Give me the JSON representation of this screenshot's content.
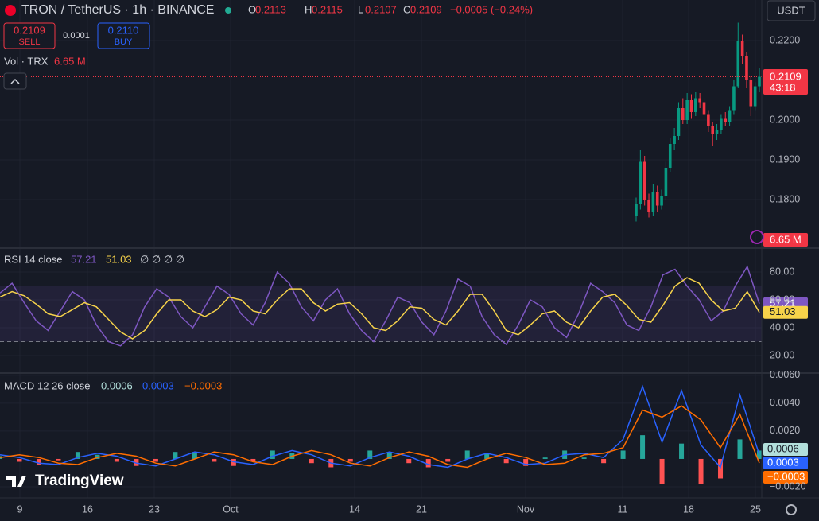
{
  "header": {
    "symbol": "TRON / TetherUS · 1h · BINANCE",
    "ohlc": [
      {
        "key": "O",
        "value": "0.2113"
      },
      {
        "key": "H",
        "value": "0.2115"
      },
      {
        "key": "L",
        "value": "0.2107"
      },
      {
        "key": "C",
        "value": "0.2109"
      }
    ],
    "change": "−0.0005 (−0.24%)",
    "currency": "USDT"
  },
  "trade": {
    "sell_price": "0.2109",
    "sell_label": "SELL",
    "spread": "0.0001",
    "buy_price": "0.2110",
    "buy_label": "BUY"
  },
  "volume": {
    "label": "Vol · TRX",
    "value": "6.65 M"
  },
  "price_tag": {
    "value": "0.2109",
    "countdown": "43:18"
  },
  "logo": "TradingView",
  "x_labels": [
    "9",
    "16",
    "23",
    "Oct",
    "14",
    "21",
    "Nov",
    "11",
    "18",
    "25"
  ],
  "chart_data": [
    {
      "type": "candlestick",
      "up_color": "#089981",
      "down_color": "#f23645",
      "open": [
        0.176,
        0.179,
        0.1895,
        0.18,
        0.177,
        0.182,
        0.1785,
        0.181,
        0.188,
        0.194,
        0.196,
        0.203,
        0.2,
        0.205,
        0.202,
        0.2055,
        0.2045,
        0.2015,
        0.1985,
        0.1965,
        0.1975,
        0.2005,
        0.1995,
        0.2025,
        0.2085,
        0.22,
        0.216,
        0.21,
        0.2035,
        0.2085
      ],
      "high": [
        0.1805,
        0.1925,
        0.191,
        0.1815,
        0.184,
        0.1835,
        0.1825,
        0.1895,
        0.1955,
        0.198,
        0.2045,
        0.2055,
        0.2068,
        0.2065,
        0.207,
        0.2068,
        0.2055,
        0.2025,
        0.1995,
        0.199,
        0.2015,
        0.202,
        0.2035,
        0.21,
        0.2245,
        0.2215,
        0.217,
        0.211,
        0.2095,
        0.213
      ],
      "low": [
        0.1745,
        0.1775,
        0.1785,
        0.1755,
        0.176,
        0.177,
        0.1775,
        0.18,
        0.187,
        0.1925,
        0.195,
        0.199,
        0.199,
        0.2005,
        0.201,
        0.203,
        0.2,
        0.197,
        0.1935,
        0.195,
        0.1965,
        0.1985,
        0.1985,
        0.2015,
        0.208,
        0.214,
        0.208,
        0.201,
        0.2025,
        0.207
      ],
      "close": [
        0.179,
        0.1895,
        0.18,
        0.177,
        0.182,
        0.1785,
        0.181,
        0.188,
        0.194,
        0.196,
        0.203,
        0.2,
        0.205,
        0.202,
        0.2055,
        0.2045,
        0.2015,
        0.1985,
        0.1965,
        0.1975,
        0.2005,
        0.1995,
        0.2025,
        0.2085,
        0.22,
        0.216,
        0.21,
        0.2035,
        0.2085,
        0.2109
      ],
      "ylim": [
        0.1682,
        0.2302
      ],
      "yticks": [
        {
          "value": 0.18,
          "label": "0.1800"
        },
        {
          "value": 0.19,
          "label": "0.1900"
        },
        {
          "value": 0.2,
          "label": "0.2000"
        },
        {
          "value": 0.22,
          "label": "0.2200"
        }
      ]
    },
    {
      "type": "rsi",
      "title": "RSI",
      "subtitle": "14 close",
      "extra": "∅ ∅ ∅ ∅",
      "band": [
        30,
        70
      ],
      "series": [
        {
          "color": "#7e57c2",
          "values": [
            65,
            72,
            58,
            45,
            38,
            52,
            66,
            60,
            42,
            30,
            27,
            35,
            55,
            68,
            62,
            48,
            40,
            55,
            70,
            64,
            50,
            42,
            58,
            80,
            72,
            55,
            45,
            60,
            68,
            50,
            38,
            30,
            45,
            62,
            58,
            44,
            35,
            52,
            75,
            70,
            48,
            35,
            28,
            42,
            60,
            55,
            40,
            33,
            50,
            72,
            66,
            58,
            42,
            38,
            55,
            78,
            82,
            70,
            60,
            45,
            52,
            70,
            84,
            57.21
          ]
        },
        {
          "color": "#f7d34a",
          "values": [
            62,
            66,
            63,
            57,
            50,
            48,
            53,
            58,
            55,
            46,
            37,
            32,
            38,
            50,
            60,
            60,
            52,
            48,
            53,
            62,
            60,
            52,
            50,
            60,
            68,
            68,
            58,
            52,
            57,
            58,
            50,
            40,
            38,
            45,
            55,
            54,
            46,
            42,
            52,
            64,
            64,
            52,
            38,
            35,
            42,
            50,
            52,
            44,
            40,
            52,
            62,
            64,
            56,
            46,
            44,
            56,
            70,
            76,
            72,
            60,
            52,
            54,
            66,
            51.03
          ]
        }
      ],
      "ylim": [
        8,
        94.9
      ],
      "yticks": [
        {
          "value": 20,
          "label": "20.00"
        },
        {
          "value": 40,
          "label": "40.00"
        },
        {
          "value": 60,
          "label": "60.00"
        },
        {
          "value": 80,
          "label": "80.00"
        }
      ]
    },
    {
      "type": "macd",
      "title": "MACD",
      "subtitle": "12 26 close",
      "series": [
        {
          "color": "#26a69a",
          "neg_color": "#ff5252",
          "legend_color": "#b2dfdb",
          "values": [
            0.0002,
            -0.0002,
            -0.0004,
            -0.0001,
            0.0005,
            0.0003,
            -0.0002,
            -0.0005,
            -0.0002,
            0.0005,
            0.0005,
            -0.0002,
            -0.0005,
            -0.0002,
            0.0006,
            0.0004,
            -0.0003,
            -0.0006,
            -0.0002,
            0.0006,
            0.0004,
            -0.0003,
            -0.0006,
            -0.0002,
            0.0006,
            0.0004,
            -0.0003,
            -0.0005,
            0.0001,
            0.0006,
            0.0001,
            -0.0003,
            0.0006,
            0.0017,
            -0.0018,
            0.0011,
            -0.0018,
            -0.0014,
            0.0014,
            0.0006
          ]
        },
        {
          "color": "#2962ff",
          "values": [
            0.0003,
            0.0001,
            -0.0003,
            -0.0004,
            0.0001,
            0.0004,
            0.0002,
            -0.0003,
            -0.0005,
            0,
            0.0005,
            0.0003,
            -0.0002,
            -0.0004,
            0.0002,
            0.0006,
            0.0003,
            -0.0003,
            -0.0005,
            0.0001,
            0.0005,
            0.0002,
            -0.0004,
            -0.0006,
            0,
            0.0004,
            0.0001,
            -0.0004,
            -0.0003,
            0.0003,
            0.0004,
            0.0001,
            0.0014,
            0.0052,
            0.0012,
            0.0049,
            0.001,
            -0.0006,
            0.0046,
            0.0003
          ]
        },
        {
          "color": "#ff6d00",
          "legend_value": "−0.0003",
          "values": [
            0.0001,
            0.0003,
            0.0001,
            -0.0003,
            -0.0004,
            0.0001,
            0.0004,
            0.0002,
            -0.0003,
            -0.0005,
            0,
            0.0005,
            0.0003,
            -0.0002,
            -0.0004,
            0.0002,
            0.0006,
            0.0003,
            -0.0003,
            -0.0005,
            0.0001,
            0.0005,
            0.0002,
            -0.0004,
            -0.0006,
            0,
            0.0004,
            0.0001,
            -0.0004,
            -0.0003,
            0.0003,
            0.0004,
            0.0008,
            0.0035,
            0.003,
            0.0038,
            0.0028,
            0.0008,
            0.0032,
            -0.0003
          ]
        }
      ],
      "ylim": [
        -0.00274,
        0.0061
      ],
      "yticks": [
        {
          "value": -0.002,
          "label": "−0.0020"
        },
        {
          "value": 0.002,
          "label": "0.0020"
        },
        {
          "value": 0.004,
          "label": "0.0040"
        },
        {
          "value": 0.006,
          "label": "0.0060"
        }
      ]
    }
  ]
}
